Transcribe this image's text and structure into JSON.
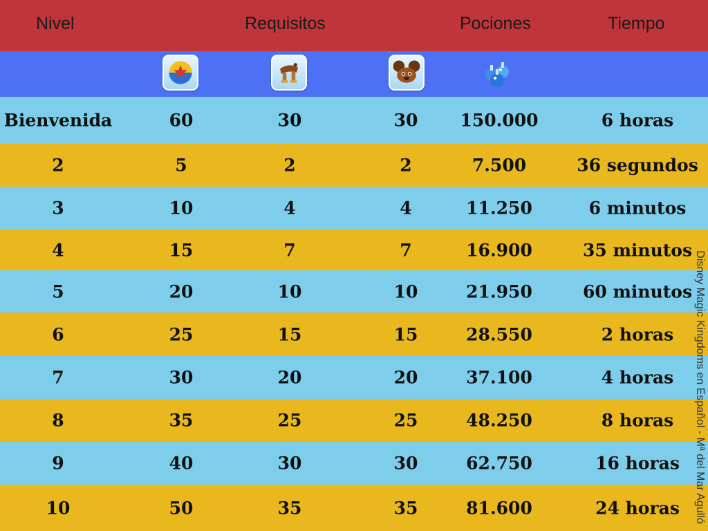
{
  "header": {
    "columns": [
      "Nivel",
      "Requisitos",
      "Pociones",
      "Tiempo"
    ],
    "color": "#c0353a"
  },
  "icon_row": {
    "color": "#4d71f5",
    "icons": [
      "ball-icon",
      "saddle-icon",
      "mouse-ears-hat-icon",
      "potions-icon"
    ]
  },
  "rows": [
    {
      "nivel": "Bienvenida",
      "req1": "60",
      "req2": "30",
      "req3": "30",
      "pociones": "150.000",
      "tiempo": "6 horas"
    },
    {
      "nivel": "2",
      "req1": "5",
      "req2": "2",
      "req3": "2",
      "pociones": "7.500",
      "tiempo": "36 segundos"
    },
    {
      "nivel": "3",
      "req1": "10",
      "req2": "4",
      "req3": "4",
      "pociones": "11.250",
      "tiempo": "6 minutos"
    },
    {
      "nivel": "4",
      "req1": "15",
      "req2": "7",
      "req3": "7",
      "pociones": "16.900",
      "tiempo": "35 minutos"
    },
    {
      "nivel": "5",
      "req1": "20",
      "req2": "10",
      "req3": "10",
      "pociones": "21.950",
      "tiempo": "60 minutos"
    },
    {
      "nivel": "6",
      "req1": "25",
      "req2": "15",
      "req3": "15",
      "pociones": "28.550",
      "tiempo": "2 horas"
    },
    {
      "nivel": "7",
      "req1": "30",
      "req2": "20",
      "req3": "20",
      "pociones": "37.100",
      "tiempo": "4 horas"
    },
    {
      "nivel": "8",
      "req1": "35",
      "req2": "25",
      "req3": "25",
      "pociones": "48.250",
      "tiempo": "8 horas"
    },
    {
      "nivel": "9",
      "req1": "40",
      "req2": "30",
      "req3": "30",
      "pociones": "62.750",
      "tiempo": "16 horas"
    },
    {
      "nivel": "10",
      "req1": "50",
      "req2": "35",
      "req3": "35",
      "pociones": "81.600",
      "tiempo": "24 horas"
    }
  ],
  "row_colors": {
    "blue": "#7dcdeb",
    "gold": "#e9b81f"
  },
  "watermark": "Disney Magic Kingdoms en Español - Mª del Mar Agulló"
}
